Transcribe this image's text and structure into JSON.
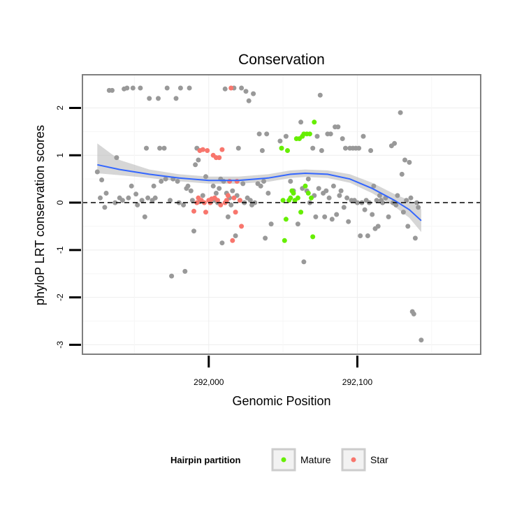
{
  "chart_data": {
    "type": "scatter",
    "title": "Conservation",
    "xlabel": "Genomic Position",
    "ylabel": "phyloP LRT conservation scores",
    "xlim": [
      291915,
      292183
    ],
    "ylim": [
      -3.2,
      2.7
    ],
    "x_ticks": [
      292000,
      292100
    ],
    "x_tick_labels": [
      "292,000",
      "292,100"
    ],
    "y_ticks": [
      -3,
      -2,
      -1,
      0,
      1,
      2
    ],
    "y_tick_labels": [
      "-3",
      "-2",
      "-1",
      "0",
      "1",
      "2"
    ],
    "grid": true,
    "reference_line": {
      "y": 0,
      "style": "dashed"
    },
    "legend": {
      "title": "Hairpin partition",
      "position": "bottom",
      "entries": [
        {
          "label": "Mature",
          "color": "#66ee00"
        },
        {
          "label": "Star",
          "color": "#f8766d"
        }
      ]
    },
    "series": [
      {
        "name": "",
        "color": "#999999",
        "points": [
          [
            291925,
            0.65
          ],
          [
            291927,
            0.1
          ],
          [
            291928,
            0.48
          ],
          [
            291930,
            -0.1
          ],
          [
            291931,
            0.2
          ],
          [
            291933,
            2.37
          ],
          [
            291935,
            2.37
          ],
          [
            291937,
            0.0
          ],
          [
            291938,
            0.95
          ],
          [
            291940,
            0.1
          ],
          [
            291942,
            0.05
          ],
          [
            291943,
            2.4
          ],
          [
            291945,
            2.42
          ],
          [
            291946,
            0.1
          ],
          [
            291948,
            0.35
          ],
          [
            291949,
            2.42
          ],
          [
            291951,
            0.18
          ],
          [
            291952,
            -0.05
          ],
          [
            291954,
            2.42
          ],
          [
            291955,
            0.05
          ],
          [
            291957,
            -0.3
          ],
          [
            291958,
            1.15
          ],
          [
            291959,
            0.1
          ],
          [
            291960,
            2.2
          ],
          [
            291962,
            0.05
          ],
          [
            291963,
            0.35
          ],
          [
            291964,
            0.1
          ],
          [
            291966,
            2.2
          ],
          [
            291967,
            1.15
          ],
          [
            291968,
            0.45
          ],
          [
            291970,
            1.15
          ],
          [
            291971,
            0.5
          ],
          [
            291972,
            2.42
          ],
          [
            291974,
            0.05
          ],
          [
            291975,
            -1.55
          ],
          [
            291976,
            0.5
          ],
          [
            291978,
            2.2
          ],
          [
            291979,
            0.45
          ],
          [
            291980,
            0.0
          ],
          [
            291981,
            2.42
          ],
          [
            291983,
            -0.05
          ],
          [
            291984,
            -1.45
          ],
          [
            291985,
            0.3
          ],
          [
            291986,
            0.35
          ],
          [
            291987,
            2.42
          ],
          [
            291988,
            0.25
          ],
          [
            291989,
            0.05
          ],
          [
            291990,
            -0.6
          ],
          [
            291991,
            0.8
          ],
          [
            291992,
            1.15
          ],
          [
            291993,
            0.9
          ],
          [
            291994,
            0.02
          ],
          [
            291996,
            0.15
          ],
          [
            291998,
            0.55
          ],
          [
            292003,
            0.35
          ],
          [
            292004,
            0.05
          ],
          [
            292005,
            0.2
          ],
          [
            292006,
            0.0
          ],
          [
            292007,
            0.3
          ],
          [
            292008,
            0.5
          ],
          [
            292009,
            -0.85
          ],
          [
            292010,
            0.45
          ],
          [
            292011,
            2.4
          ],
          [
            292012,
            0.2
          ],
          [
            292013,
            -0.3
          ],
          [
            292014,
            0.1
          ],
          [
            292015,
            -0.05
          ],
          [
            292016,
            0.25
          ],
          [
            292017,
            2.42
          ],
          [
            292018,
            -0.7
          ],
          [
            292019,
            0.15
          ],
          [
            292020,
            1.15
          ],
          [
            292021,
            0.05
          ],
          [
            292022,
            2.42
          ],
          [
            292023,
            0.4
          ],
          [
            292024,
            0.0
          ],
          [
            292025,
            2.35
          ],
          [
            292026,
            0.1
          ],
          [
            292027,
            2.15
          ],
          [
            292028,
            0.05
          ],
          [
            292029,
            -0.05
          ],
          [
            292030,
            2.3
          ],
          [
            292031,
            0.0
          ],
          [
            292033,
            0.4
          ],
          [
            292034,
            1.45
          ],
          [
            292035,
            0.35
          ],
          [
            292036,
            1.1
          ],
          [
            292037,
            0.45
          ],
          [
            292038,
            -0.75
          ],
          [
            292039,
            1.45
          ],
          [
            292040,
            0.2
          ],
          [
            292042,
            -0.45
          ],
          [
            292048,
            1.3
          ],
          [
            292052,
            1.4
          ],
          [
            292055,
            0.45
          ],
          [
            292057,
            0.25
          ],
          [
            292060,
            -0.45
          ],
          [
            292062,
            1.7
          ],
          [
            292063,
            0.3
          ],
          [
            292064,
            -1.25
          ],
          [
            292066,
            0.25
          ],
          [
            292067,
            0.5
          ],
          [
            292068,
            0.0
          ],
          [
            292070,
            1.15
          ],
          [
            292071,
            0.15
          ],
          [
            292072,
            -0.3
          ],
          [
            292073,
            1.4
          ],
          [
            292074,
            0.3
          ],
          [
            292075,
            2.27
          ],
          [
            292076,
            1.1
          ],
          [
            292077,
            0.2
          ],
          [
            292078,
            -0.3
          ],
          [
            292079,
            0.25
          ],
          [
            292080,
            1.45
          ],
          [
            292081,
            0.1
          ],
          [
            292082,
            1.45
          ],
          [
            292083,
            -0.35
          ],
          [
            292084,
            0.35
          ],
          [
            292085,
            1.6
          ],
          [
            292086,
            -0.25
          ],
          [
            292087,
            1.6
          ],
          [
            292088,
            0.15
          ],
          [
            292089,
            0.25
          ],
          [
            292090,
            1.35
          ],
          [
            292091,
            -0.1
          ],
          [
            292092,
            1.15
          ],
          [
            292093,
            0.1
          ],
          [
            292094,
            -0.4
          ],
          [
            292095,
            1.15
          ],
          [
            292096,
            0.05
          ],
          [
            292097,
            1.15
          ],
          [
            292098,
            0.05
          ],
          [
            292099,
            1.15
          ],
          [
            292100,
            0.0
          ],
          [
            292101,
            1.15
          ],
          [
            292102,
            -0.7
          ],
          [
            292103,
            0.0
          ],
          [
            292104,
            1.4
          ],
          [
            292105,
            -0.15
          ],
          [
            292106,
            0.05
          ],
          [
            292107,
            -0.7
          ],
          [
            292108,
            0.0
          ],
          [
            292109,
            1.1
          ],
          [
            292110,
            -0.25
          ],
          [
            292111,
            0.35
          ],
          [
            292112,
            -0.55
          ],
          [
            292113,
            0.05
          ],
          [
            292114,
            -0.5
          ],
          [
            292115,
            0.15
          ],
          [
            292116,
            0.05
          ],
          [
            292117,
            0.0
          ],
          [
            292119,
            0.1
          ],
          [
            292121,
            -0.3
          ],
          [
            292123,
            1.2
          ],
          [
            292124,
            0.0
          ],
          [
            292125,
            1.25
          ],
          [
            292126,
            -0.05
          ],
          [
            292127,
            0.15
          ],
          [
            292129,
            1.9
          ],
          [
            292130,
            0.6
          ],
          [
            292131,
            -0.2
          ],
          [
            292132,
            0.9
          ],
          [
            292133,
            0.05
          ],
          [
            292134,
            -0.5
          ],
          [
            292135,
            0.85
          ],
          [
            292136,
            0.1
          ],
          [
            292137,
            -2.3
          ],
          [
            292138,
            -2.35
          ],
          [
            292139,
            -0.75
          ],
          [
            292140,
            0.0
          ],
          [
            292141,
            -0.1
          ],
          [
            292143,
            -2.9
          ]
        ]
      },
      {
        "name": "Star",
        "color": "#f8766d",
        "points": [
          [
            291993,
            0.1
          ],
          [
            291994,
            1.1
          ],
          [
            291995,
            0.05
          ],
          [
            291996,
            1.12
          ],
          [
            291997,
            0.0
          ],
          [
            291998,
            -0.2
          ],
          [
            291999,
            1.1
          ],
          [
            292000,
            0.05
          ],
          [
            292001,
            0.0
          ],
          [
            292002,
            0.08
          ],
          [
            292003,
            1.0
          ],
          [
            292004,
            0.1
          ],
          [
            292005,
            0.95
          ],
          [
            292006,
            0.05
          ],
          [
            292007,
            0.95
          ],
          [
            292008,
            -0.05
          ],
          [
            292009,
            1.12
          ],
          [
            292011,
            0.0
          ],
          [
            292012,
            0.05
          ],
          [
            292013,
            0.15
          ],
          [
            292014,
            0.45
          ],
          [
            292015,
            2.42
          ],
          [
            292016,
            -0.8
          ],
          [
            292017,
            0.1
          ],
          [
            292018,
            -0.2
          ],
          [
            292019,
            0.45
          ],
          [
            292021,
            0.05
          ],
          [
            292022,
            -0.5
          ],
          [
            291990,
            -0.18
          ],
          [
            291992,
            0.0
          ]
        ]
      },
      {
        "name": "Mature",
        "color": "#66ee00",
        "points": [
          [
            292049,
            1.15
          ],
          [
            292050,
            0.05
          ],
          [
            292051,
            -0.8
          ],
          [
            292052,
            -0.35
          ],
          [
            292053,
            1.1
          ],
          [
            292054,
            0.05
          ],
          [
            292055,
            0.1
          ],
          [
            292056,
            0.25
          ],
          [
            292057,
            0.2
          ],
          [
            292058,
            0.05
          ],
          [
            292059,
            1.35
          ],
          [
            292060,
            0.1
          ],
          [
            292061,
            1.35
          ],
          [
            292062,
            -0.2
          ],
          [
            292063,
            1.4
          ],
          [
            292064,
            1.45
          ],
          [
            292065,
            0.35
          ],
          [
            292066,
            1.45
          ],
          [
            292067,
            0.2
          ],
          [
            292068,
            1.45
          ],
          [
            292069,
            0.1
          ],
          [
            292070,
            -0.72
          ],
          [
            292071,
            1.7
          ]
        ]
      }
    ],
    "smooth": {
      "color": "#3366ff",
      "band_color": "#bbbbbb",
      "x": [
        291925,
        291940,
        291960,
        291980,
        292000,
        292020,
        292040,
        292055,
        292065,
        292080,
        292095,
        292110,
        292125,
        292135,
        292143
      ],
      "y": [
        0.8,
        0.7,
        0.6,
        0.52,
        0.47,
        0.47,
        0.52,
        0.6,
        0.62,
        0.6,
        0.5,
        0.3,
        0.05,
        -0.15,
        -0.38
      ],
      "lower": [
        0.62,
        0.58,
        0.52,
        0.45,
        0.4,
        0.4,
        0.44,
        0.52,
        0.54,
        0.52,
        0.42,
        0.2,
        -0.08,
        -0.32,
        -0.62
      ],
      "upper": [
        1.25,
        0.9,
        0.7,
        0.6,
        0.55,
        0.55,
        0.6,
        0.68,
        0.7,
        0.68,
        0.6,
        0.42,
        0.18,
        0.05,
        -0.14
      ]
    }
  }
}
